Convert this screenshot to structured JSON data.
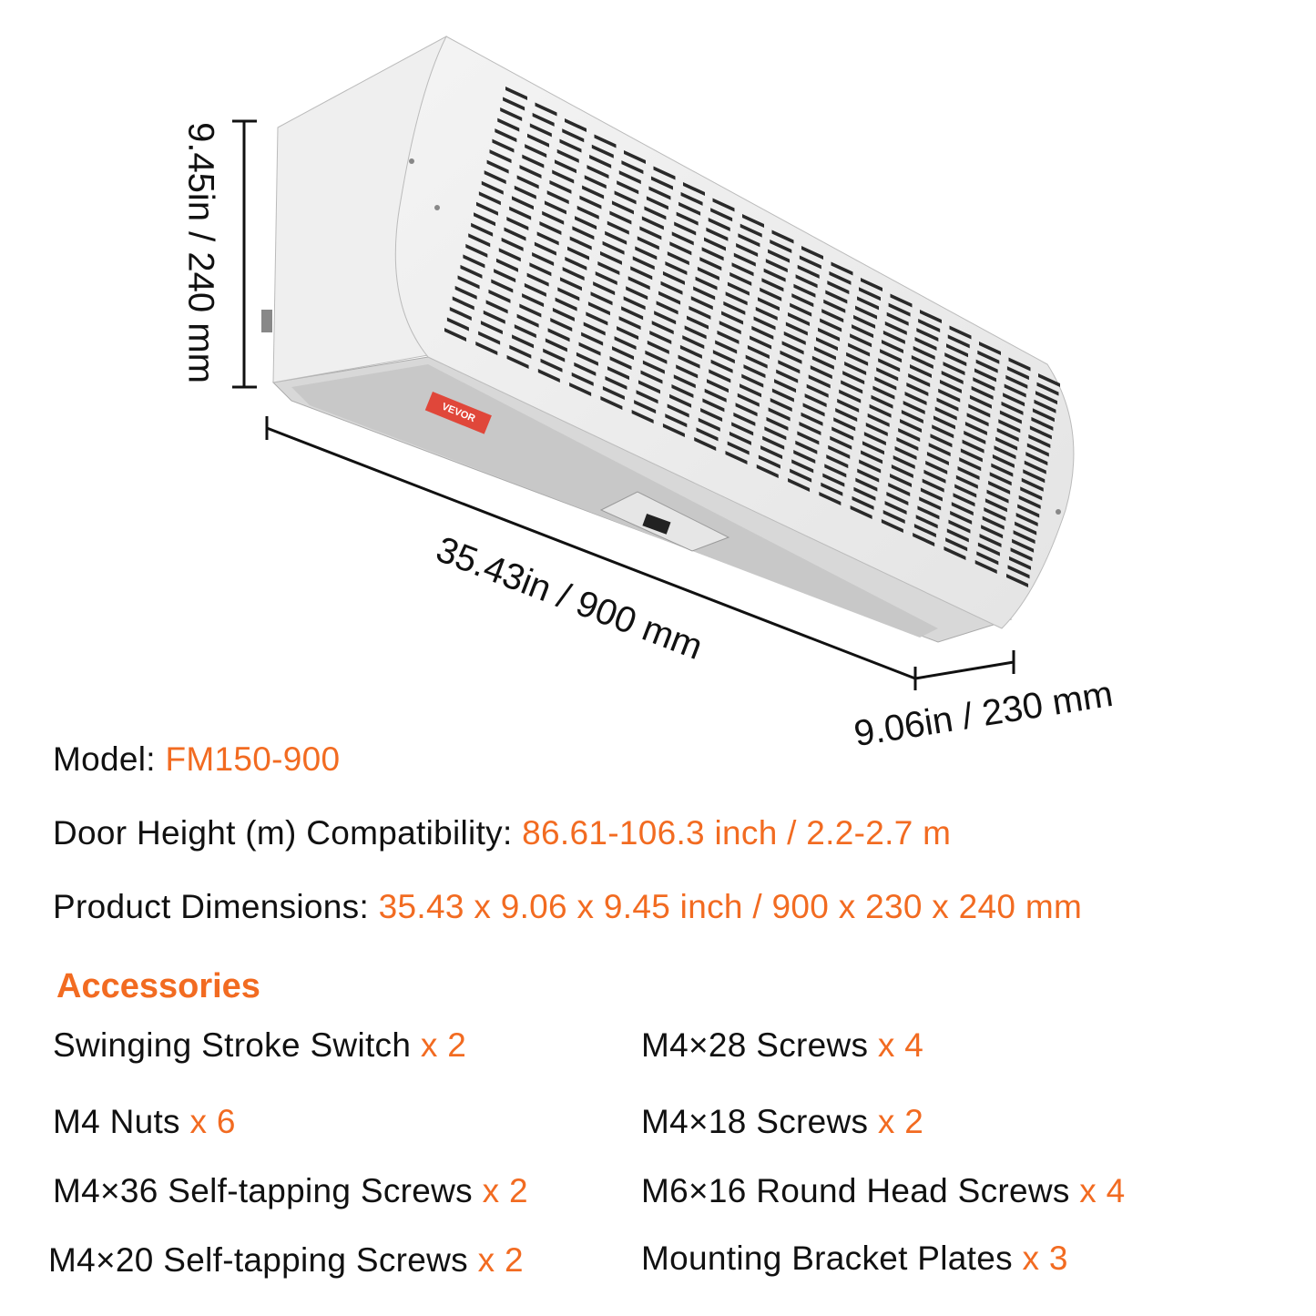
{
  "dimensions": {
    "height": "9.45in / 240 mm",
    "length": "35.43in / 900 mm",
    "depth": "9.06in / 230 mm"
  },
  "brand_label": "VEVOR",
  "specs": [
    {
      "label": "Model: ",
      "value": "FM150-900"
    },
    {
      "label": "Door Height (m) Compatibility: ",
      "value": "86.61-106.3 inch / 2.2-2.7 m"
    },
    {
      "label": "Product Dimensions: ",
      "value": "35.43 x 9.06 x 9.45 inch / 900 x 230 x 240 mm"
    }
  ],
  "accessories": {
    "title": "Accessories",
    "items": [
      {
        "name": "Swinging Stroke Switch ",
        "qty": "x 2"
      },
      {
        "name": "M4×28 Screws ",
        "qty": "x 4"
      },
      {
        "name": "M4 Nuts ",
        "qty": "x 6"
      },
      {
        "name": "M4×18 Screws ",
        "qty": "x 2"
      },
      {
        "name": "M4×36 Self-tapping Screws ",
        "qty": "x 2"
      },
      {
        "name": "M6×16 Round Head Screws ",
        "qty": "x 4"
      },
      {
        "name": "M4×20 Self-tapping Screws ",
        "qty": "x 2"
      },
      {
        "name": "Mounting Bracket Plates ",
        "qty": "x 3"
      }
    ]
  },
  "colors": {
    "accent": "#f26b21",
    "label_red": "#e0473a"
  }
}
